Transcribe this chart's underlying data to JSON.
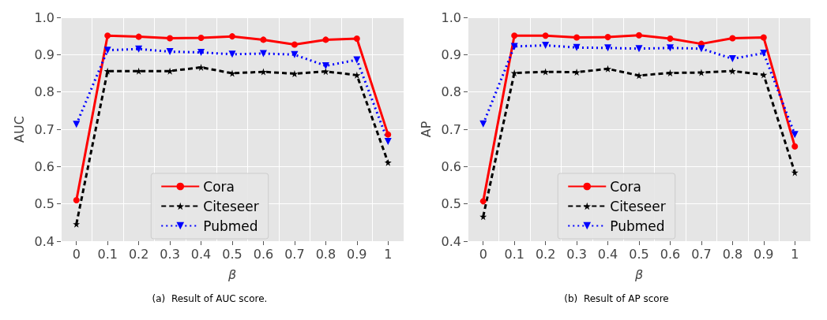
{
  "chart_data": [
    {
      "type": "line",
      "ylabel": "AUC",
      "xlabel": "β",
      "annotations": [
        "(a)  Result of AUC score."
      ],
      "categories": [
        "0",
        "0.1",
        "0.2",
        "0.3",
        "0.4",
        "0.5",
        "0.6",
        "0.7",
        "0.8",
        "0.9",
        "1"
      ],
      "ylim": [
        0.4,
        1.0
      ],
      "yticks": [
        0.4,
        0.5,
        0.6,
        0.7,
        0.8,
        0.9,
        {
          "value": 1.0,
          "label": "1.0"
        }
      ],
      "grid": true,
      "legend": "bottom",
      "series": [
        {
          "name": "Cora",
          "color": "#ff0000",
          "marker": "circle",
          "line_style": "solid",
          "values": [
            0.51,
            0.951,
            0.948,
            0.944,
            0.945,
            0.949,
            0.94,
            0.927,
            0.94,
            0.943,
            0.686
          ]
        },
        {
          "name": "Citeseer",
          "color": "#000000",
          "marker": "star",
          "line_style": "dashed",
          "values": [
            0.446,
            0.856,
            0.856,
            0.856,
            0.866,
            0.85,
            0.854,
            0.849,
            0.855,
            0.845,
            0.611
          ]
        },
        {
          "name": "Pubmed",
          "color": "#0000ff",
          "marker": "triangle",
          "line_style": "dotted",
          "values": [
            0.713,
            0.912,
            0.915,
            0.908,
            0.906,
            0.901,
            0.903,
            0.9,
            0.87,
            0.886,
            0.667
          ]
        }
      ]
    },
    {
      "type": "line",
      "ylabel": "AP",
      "xlabel": "β",
      "annotations": [
        "(b)  Result of AP score"
      ],
      "categories": [
        "0",
        "0.1",
        "0.2",
        "0.3",
        "0.4",
        "0.5",
        "0.6",
        "0.7",
        "0.8",
        "0.9",
        "1"
      ],
      "ylim": [
        0.4,
        1.0
      ],
      "yticks": [
        0.4,
        0.5,
        0.6,
        0.7,
        0.8,
        0.9,
        {
          "value": 1.0,
          "label": "1.0"
        }
      ],
      "grid": true,
      "legend": "bottom",
      "series": [
        {
          "name": "Cora",
          "color": "#ff0000",
          "marker": "circle",
          "line_style": "solid",
          "values": [
            0.507,
            0.951,
            0.951,
            0.946,
            0.947,
            0.952,
            0.943,
            0.929,
            0.944,
            0.946,
            0.654
          ]
        },
        {
          "name": "Citeseer",
          "color": "#000000",
          "marker": "star",
          "line_style": "dashed",
          "values": [
            0.466,
            0.851,
            0.854,
            0.853,
            0.862,
            0.844,
            0.851,
            0.852,
            0.856,
            0.846,
            0.584
          ]
        },
        {
          "name": "Pubmed",
          "color": "#0000ff",
          "marker": "triangle",
          "line_style": "dotted",
          "values": [
            0.714,
            0.922,
            0.925,
            0.919,
            0.918,
            0.916,
            0.918,
            0.916,
            0.889,
            0.904,
            0.686
          ]
        }
      ]
    }
  ]
}
